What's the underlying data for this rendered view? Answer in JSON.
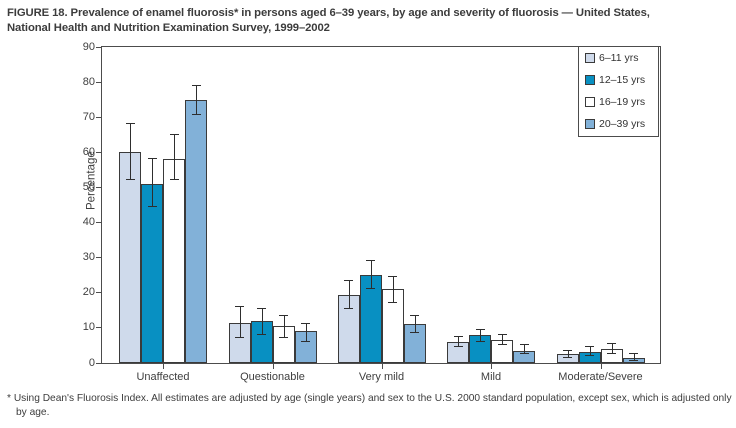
{
  "figure": {
    "title_lines": [
      "FIGURE 18. Prevalence of enamel fluorosis* in persons aged 6–39 years, by age and severity of fluorosis — United States,",
      "National Health and Nutrition Examination Survey, 1999–2002"
    ],
    "footnote_marker": "*",
    "footnote_text": "Using Dean's Fluorosis Index. All estimates are adjusted by age (single years) and sex to the U.S. 2000 standard population, except sex, which is adjusted only by age."
  },
  "chart_data": {
    "type": "bar",
    "title": "Prevalence of enamel fluorosis in persons aged 6–39 years, by age and severity of fluorosis, United States, NHANES 1999–2002",
    "categories": [
      "Unaffected",
      "Questionable",
      "Very mild",
      "Mild",
      "Moderate/Severe"
    ],
    "series": [
      {
        "name": "6–11 yrs",
        "color": "#cfdaeb",
        "values": [
          60,
          11.5,
          19.5,
          6,
          2.5
        ],
        "ci_low": [
          52,
          7,
          15.5,
          4.5,
          1.5
        ],
        "ci_high": [
          68,
          16,
          23.5,
          7.5,
          3.5
        ]
      },
      {
        "name": "12–15 yrs",
        "color": "#0890c2",
        "values": [
          51,
          12,
          25,
          8,
          3
        ],
        "ci_low": [
          44.5,
          8,
          21,
          6,
          2
        ],
        "ci_high": [
          58,
          15.5,
          29,
          9.5,
          4.5
        ]
      },
      {
        "name": "16–19 yrs",
        "color": "#ffffff",
        "values": [
          58,
          10.5,
          21,
          6.5,
          4
        ],
        "ci_low": [
          52,
          7,
          17,
          5,
          2.5
        ],
        "ci_high": [
          65,
          13.5,
          24.5,
          8,
          5.5
        ]
      },
      {
        "name": "20–39 yrs",
        "color": "#82b1d8",
        "values": [
          75,
          9,
          11,
          3.5,
          1.5
        ],
        "ci_low": [
          70.5,
          6,
          8.5,
          2.5,
          0.5
        ],
        "ci_high": [
          79,
          11,
          13.5,
          5,
          2.5
        ]
      }
    ],
    "xlabel": "",
    "ylabel": "Percentage",
    "ylim": [
      0,
      90
    ],
    "yticks": [
      0,
      10,
      20,
      30,
      40,
      50,
      60,
      70,
      80,
      90
    ],
    "grid": false,
    "error_bars": true,
    "legend_position": "inside-top-right"
  }
}
